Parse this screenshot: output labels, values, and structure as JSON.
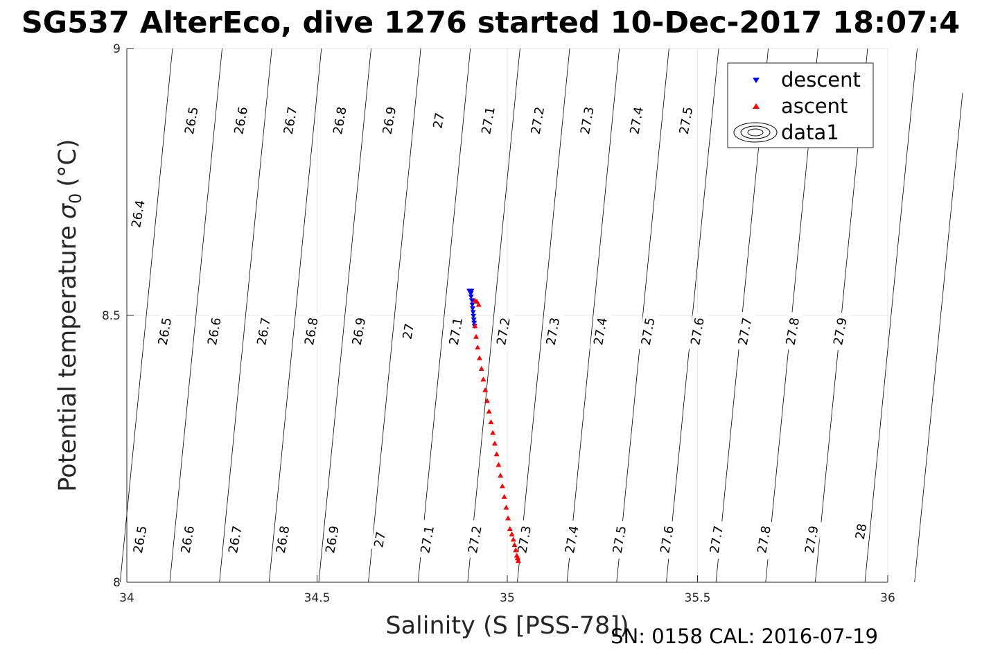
{
  "chart_data": {
    "type": "scatter",
    "title": "SG537 AlterEco, dive 1276 started 10-Dec-2017 18:07:4",
    "xlabel": "Salinity (S [PSS-78])",
    "ylabel_main": "Potential temperature",
    "ylabel_sigma": "σ",
    "ylabel_sub": "0",
    "ylabel_unit": "(°C)",
    "xlim": [
      34,
      36
    ],
    "ylim": [
      8,
      9
    ],
    "x_ticks": [
      "34",
      "34.5",
      "35",
      "35.5",
      "36"
    ],
    "y_ticks": [
      "8",
      "8.5",
      "9"
    ],
    "grid": true,
    "legend_position": "top-right",
    "legend": [
      "descent",
      "ascent",
      "data1"
    ],
    "series": [
      {
        "name": "descent",
        "marker": "triangle-down",
        "color": "#0000ff",
        "points": [
          [
            34.9,
            8.546
          ],
          [
            34.902,
            8.544
          ],
          [
            34.906,
            8.546
          ],
          [
            34.904,
            8.541
          ],
          [
            34.905,
            8.535
          ],
          [
            34.907,
            8.528
          ],
          [
            34.908,
            8.52
          ],
          [
            34.909,
            8.513
          ],
          [
            34.91,
            8.506
          ],
          [
            34.911,
            8.499
          ],
          [
            34.912,
            8.492
          ],
          [
            34.913,
            8.486
          ],
          [
            34.914,
            8.48
          ]
        ]
      },
      {
        "name": "ascent",
        "marker": "triangle-up",
        "color": "#ff0000",
        "points": [
          [
            34.915,
            8.528
          ],
          [
            34.92,
            8.526
          ],
          [
            34.925,
            8.52
          ],
          [
            34.915,
            8.48
          ],
          [
            34.918,
            8.46
          ],
          [
            34.922,
            8.44
          ],
          [
            34.927,
            8.42
          ],
          [
            34.932,
            8.4
          ],
          [
            34.937,
            8.38
          ],
          [
            34.942,
            8.36
          ],
          [
            34.947,
            8.34
          ],
          [
            34.952,
            8.32
          ],
          [
            34.957,
            8.3
          ],
          [
            34.962,
            8.28
          ],
          [
            34.967,
            8.26
          ],
          [
            34.972,
            8.24
          ],
          [
            34.977,
            8.22
          ],
          [
            34.982,
            8.2
          ],
          [
            34.987,
            8.18
          ],
          [
            34.992,
            8.16
          ],
          [
            34.997,
            8.14
          ],
          [
            35.002,
            8.12
          ],
          [
            35.007,
            8.1
          ],
          [
            35.012,
            8.09
          ],
          [
            35.016,
            8.08
          ],
          [
            35.019,
            8.07
          ],
          [
            35.022,
            8.06
          ],
          [
            35.025,
            8.05
          ],
          [
            35.027,
            8.045
          ],
          [
            35.029,
            8.04
          ]
        ]
      }
    ],
    "sigma_contours": [
      26.4,
      26.5,
      26.6,
      26.7,
      26.8,
      26.9,
      27,
      27.1,
      27.2,
      27.3,
      27.4,
      27.5,
      27.6,
      27.7,
      27.8,
      27.9,
      28
    ],
    "contour_labels": [
      {
        "s": "26.4",
        "sal": 34.03,
        "t": 8.69
      },
      {
        "s": "26.5",
        "sal": 34.17,
        "t": 8.865
      },
      {
        "s": "26.6",
        "sal": 34.3,
        "t": 8.865
      },
      {
        "s": "26.7",
        "sal": 34.43,
        "t": 8.865
      },
      {
        "s": "26.8",
        "sal": 34.56,
        "t": 8.865
      },
      {
        "s": "26.9",
        "sal": 34.69,
        "t": 8.865
      },
      {
        "s": "27",
        "sal": 34.82,
        "t": 8.865
      },
      {
        "s": "27.1",
        "sal": 34.95,
        "t": 8.865
      },
      {
        "s": "27.2",
        "sal": 35.08,
        "t": 8.865
      },
      {
        "s": "27.3",
        "sal": 35.21,
        "t": 8.865
      },
      {
        "s": "27.4",
        "sal": 35.34,
        "t": 8.865
      },
      {
        "s": "27.5",
        "sal": 35.47,
        "t": 8.865
      },
      {
        "s": "27.9",
        "sal": 35.93,
        "t": 8.865
      },
      {
        "s": "26.5",
        "sal": 34.1,
        "t": 8.47
      },
      {
        "s": "26.6",
        "sal": 34.23,
        "t": 8.47
      },
      {
        "s": "26.7",
        "sal": 34.36,
        "t": 8.47
      },
      {
        "s": "26.8",
        "sal": 34.485,
        "t": 8.47
      },
      {
        "s": "26.9",
        "sal": 34.61,
        "t": 8.47
      },
      {
        "s": "27",
        "sal": 34.74,
        "t": 8.47
      },
      {
        "s": "27.1",
        "sal": 34.865,
        "t": 8.47
      },
      {
        "s": "27.2",
        "sal": 34.99,
        "t": 8.47
      },
      {
        "s": "27.3",
        "sal": 35.12,
        "t": 8.47
      },
      {
        "s": "27.4",
        "sal": 35.245,
        "t": 8.47
      },
      {
        "s": "27.5",
        "sal": 35.37,
        "t": 8.47
      },
      {
        "s": "27.6",
        "sal": 35.5,
        "t": 8.47
      },
      {
        "s": "27.7",
        "sal": 35.625,
        "t": 8.47
      },
      {
        "s": "27.8",
        "sal": 35.75,
        "t": 8.47
      },
      {
        "s": "27.9",
        "sal": 35.875,
        "t": 8.47
      },
      {
        "s": "26.5",
        "sal": 34.035,
        "t": 8.08
      },
      {
        "s": "26.6",
        "sal": 34.16,
        "t": 8.08
      },
      {
        "s": "26.7",
        "sal": 34.285,
        "t": 8.08
      },
      {
        "s": "26.8",
        "sal": 34.41,
        "t": 8.08
      },
      {
        "s": "26.9",
        "sal": 34.54,
        "t": 8.08
      },
      {
        "s": "27",
        "sal": 34.665,
        "t": 8.08
      },
      {
        "s": "27.1",
        "sal": 34.79,
        "t": 8.08
      },
      {
        "s": "27.2",
        "sal": 34.915,
        "t": 8.08
      },
      {
        "s": "27.3",
        "sal": 35.045,
        "t": 8.08
      },
      {
        "s": "27.4",
        "sal": 35.17,
        "t": 8.08
      },
      {
        "s": "27.5",
        "sal": 35.295,
        "t": 8.08
      },
      {
        "s": "27.6",
        "sal": 35.42,
        "t": 8.08
      },
      {
        "s": "27.7",
        "sal": 35.55,
        "t": 8.08
      },
      {
        "s": "27.8",
        "sal": 35.675,
        "t": 8.08
      },
      {
        "s": "27.9",
        "sal": 35.8,
        "t": 8.08
      },
      {
        "s": "28",
        "sal": 35.93,
        "t": 8.095
      }
    ],
    "footer": "SN: 0158  CAL: 2016-07-19"
  }
}
